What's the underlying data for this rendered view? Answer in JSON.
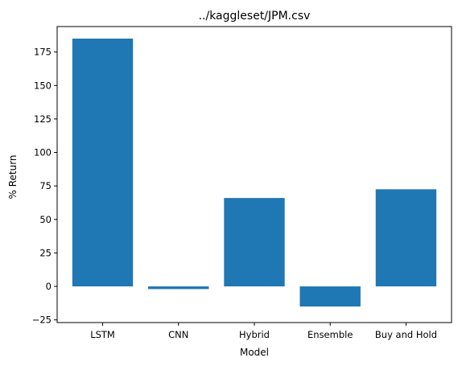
{
  "chart_data": {
    "type": "bar",
    "title": "../kaggleset/JPM.csv",
    "xlabel": "Model",
    "ylabel": "% Return",
    "categories": [
      "LSTM",
      "CNN",
      "Hybrid",
      "Ensemble",
      "Buy and Hold"
    ],
    "values": [
      185,
      -2,
      66,
      -15,
      72.5
    ],
    "ylim": [
      -27,
      194
    ],
    "yticks": [
      -25,
      0,
      25,
      50,
      75,
      100,
      125,
      150,
      175
    ],
    "grid": false,
    "bar_color": "#1f77b4"
  }
}
